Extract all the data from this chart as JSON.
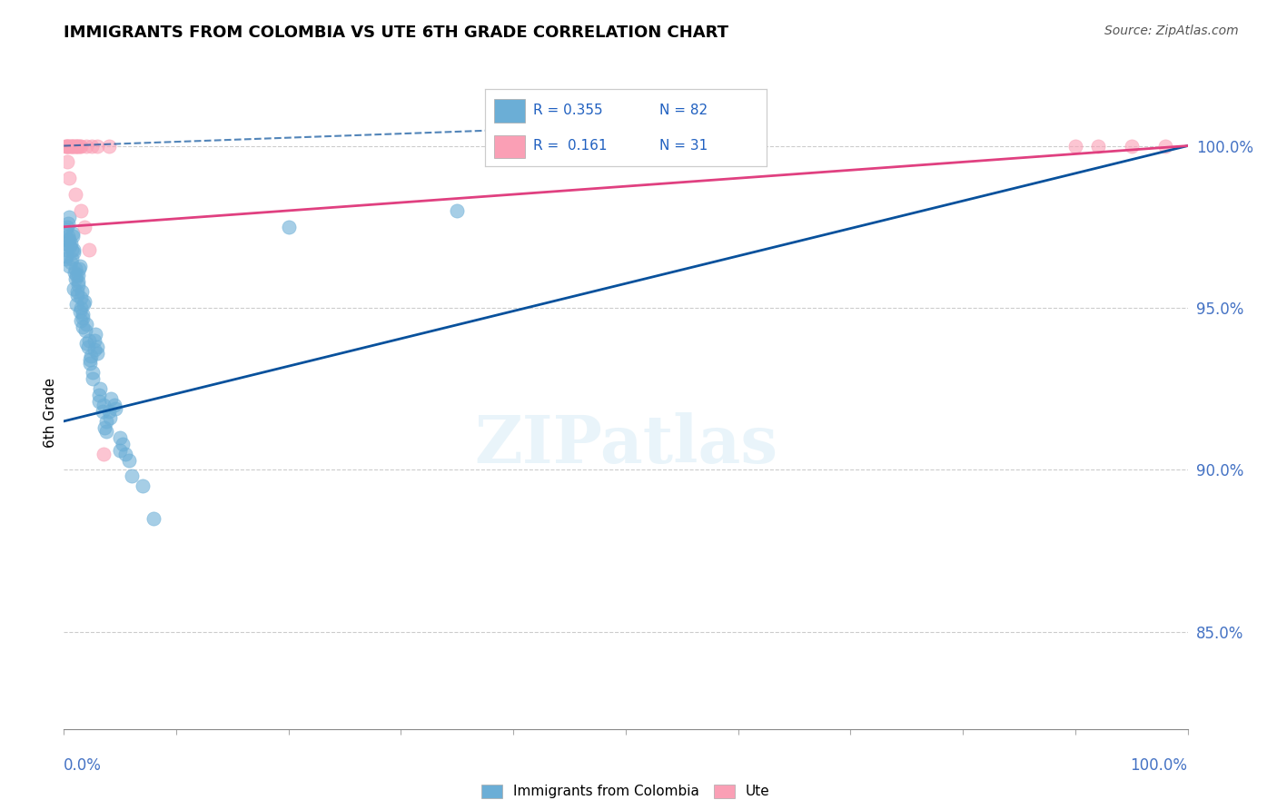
{
  "title": "IMMIGRANTS FROM COLOMBIA VS UTE 6TH GRADE CORRELATION CHART",
  "source": "Source: ZipAtlas.com",
  "ylabel": "6th Grade",
  "right_yticks": [
    100.0,
    95.0,
    90.0,
    85.0
  ],
  "blue_color": "#6baed6",
  "pink_color": "#fa9fb5",
  "blue_line_color": "#08519c",
  "pink_line_color": "#e04080",
  "blue_scatter": [
    [
      0.2,
      96.8
    ],
    [
      0.3,
      97.5
    ],
    [
      0.4,
      97.2
    ],
    [
      0.5,
      97.8
    ],
    [
      0.6,
      97.0
    ],
    [
      0.7,
      96.5
    ],
    [
      0.8,
      97.3
    ],
    [
      0.9,
      96.8
    ],
    [
      1.0,
      96.2
    ],
    [
      1.1,
      96.0
    ],
    [
      1.2,
      95.5
    ],
    [
      1.3,
      95.8
    ],
    [
      1.4,
      96.3
    ],
    [
      1.5,
      95.0
    ],
    [
      1.6,
      95.5
    ],
    [
      1.7,
      94.8
    ],
    [
      1.8,
      95.2
    ],
    [
      2.0,
      94.5
    ],
    [
      2.2,
      94.0
    ],
    [
      2.4,
      93.5
    ],
    [
      2.6,
      93.0
    ],
    [
      2.8,
      94.2
    ],
    [
      3.0,
      93.8
    ],
    [
      3.2,
      92.5
    ],
    [
      3.5,
      92.0
    ],
    [
      3.8,
      91.5
    ],
    [
      4.0,
      91.8
    ],
    [
      4.5,
      92.0
    ],
    [
      5.0,
      91.0
    ],
    [
      5.5,
      90.5
    ],
    [
      0.15,
      96.5
    ],
    [
      0.25,
      97.0
    ],
    [
      0.35,
      97.6
    ],
    [
      0.45,
      97.1
    ],
    [
      0.55,
      96.9
    ],
    [
      0.65,
      96.4
    ],
    [
      0.75,
      97.2
    ],
    [
      0.85,
      96.7
    ],
    [
      0.95,
      96.1
    ],
    [
      1.05,
      95.9
    ],
    [
      1.15,
      95.4
    ],
    [
      1.25,
      95.7
    ],
    [
      1.35,
      96.2
    ],
    [
      1.45,
      94.9
    ],
    [
      1.55,
      95.3
    ],
    [
      1.65,
      94.7
    ],
    [
      1.75,
      95.1
    ],
    [
      1.95,
      94.3
    ],
    [
      2.15,
      93.8
    ],
    [
      2.35,
      93.3
    ],
    [
      2.55,
      92.8
    ],
    [
      2.75,
      94.0
    ],
    [
      2.95,
      93.6
    ],
    [
      3.15,
      92.3
    ],
    [
      3.45,
      91.8
    ],
    [
      3.75,
      91.2
    ],
    [
      4.1,
      91.6
    ],
    [
      4.6,
      91.9
    ],
    [
      5.2,
      90.8
    ],
    [
      5.8,
      90.3
    ],
    [
      0.1,
      97.4
    ],
    [
      0.2,
      96.6
    ],
    [
      0.3,
      97.1
    ],
    [
      0.5,
      96.3
    ],
    [
      0.7,
      96.8
    ],
    [
      0.9,
      95.6
    ],
    [
      1.1,
      95.1
    ],
    [
      1.3,
      96.0
    ],
    [
      1.5,
      94.6
    ],
    [
      1.7,
      94.4
    ],
    [
      2.0,
      93.9
    ],
    [
      2.3,
      93.4
    ],
    [
      2.7,
      93.7
    ],
    [
      3.1,
      92.1
    ],
    [
      3.6,
      91.3
    ],
    [
      4.2,
      92.2
    ],
    [
      5.0,
      90.6
    ],
    [
      6.0,
      89.8
    ],
    [
      7.0,
      89.5
    ],
    [
      8.0,
      88.5
    ],
    [
      20.0,
      97.5
    ],
    [
      35.0,
      98.0
    ]
  ],
  "pink_scatter": [
    [
      0.1,
      100.0
    ],
    [
      0.2,
      100.0
    ],
    [
      0.3,
      100.0
    ],
    [
      0.4,
      100.0
    ],
    [
      0.5,
      100.0
    ],
    [
      0.6,
      100.0
    ],
    [
      0.7,
      100.0
    ],
    [
      0.8,
      100.0
    ],
    [
      0.9,
      100.0
    ],
    [
      1.0,
      100.0
    ],
    [
      1.1,
      100.0
    ],
    [
      1.2,
      100.0
    ],
    [
      1.3,
      100.0
    ],
    [
      1.4,
      100.0
    ],
    [
      1.5,
      100.0
    ],
    [
      2.0,
      100.0
    ],
    [
      2.5,
      100.0
    ],
    [
      3.0,
      100.0
    ],
    [
      4.0,
      100.0
    ],
    [
      0.3,
      99.5
    ],
    [
      0.5,
      99.0
    ],
    [
      1.0,
      98.5
    ],
    [
      1.5,
      98.0
    ],
    [
      1.8,
      97.5
    ],
    [
      2.2,
      96.8
    ],
    [
      3.5,
      90.5
    ],
    [
      90.0,
      100.0
    ],
    [
      92.0,
      100.0
    ],
    [
      95.0,
      100.0
    ],
    [
      98.0,
      100.0
    ]
  ],
  "blue_line_x": [
    0.0,
    100.0
  ],
  "blue_line_y_start": 91.5,
  "blue_line_y_end": 100.0,
  "pink_line_x": [
    0.0,
    100.0
  ],
  "pink_line_y_start": 97.5,
  "pink_line_y_end": 100.0,
  "xlim": [
    0.0,
    100.0
  ],
  "ylim": [
    82.0,
    101.5
  ]
}
